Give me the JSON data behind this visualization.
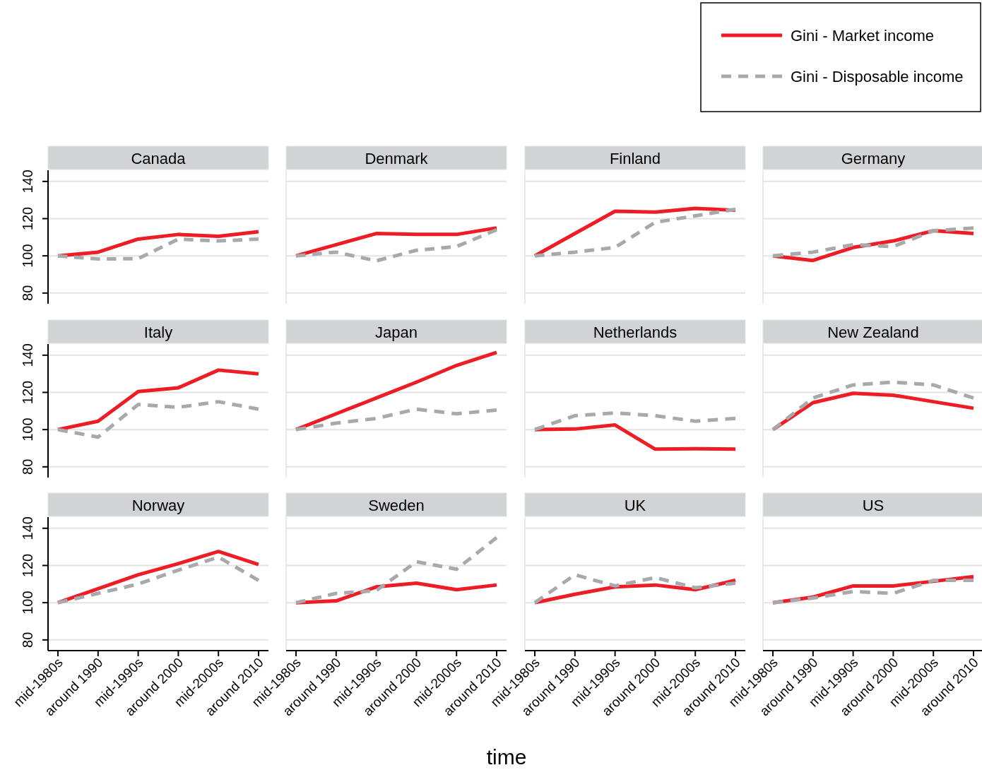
{
  "chart_data": [
    {
      "type": "line",
      "title": "Canada",
      "categories": [
        "mid-1980s",
        "around 1990",
        "mid-1990s",
        "around 2000",
        "mid-2000s",
        "around 2010"
      ],
      "ylim": [
        75,
        146
      ],
      "yticks": [
        80,
        100,
        120,
        140
      ],
      "grid": "y",
      "tick_labels": "y",
      "legend": "top right",
      "series": [
        {
          "name": "Gini - Market income",
          "color": "#ee1c25",
          "line_style": "solid",
          "values": [
            100,
            102,
            109,
            111.5,
            110.5,
            113
          ]
        },
        {
          "name": "Gini - Disposable income",
          "color": "#a7a9ac",
          "line_style": "dashed",
          "values": [
            100,
            98.3,
            98.5,
            109,
            108,
            109
          ]
        }
      ]
    },
    {
      "type": "line",
      "title": "Denmark",
      "categories": [
        "mid-1980s",
        "around 1990",
        "mid-1990s",
        "around 2000",
        "mid-2000s",
        "around 2010"
      ],
      "ylim": [
        75,
        146
      ],
      "yticks": [
        80,
        100,
        120,
        140
      ],
      "grid": "y",
      "tick_labels": false,
      "series": [
        {
          "name": "Gini - Market income",
          "color": "#ee1c25",
          "line_style": "solid",
          "values": [
            100,
            106,
            112,
            111.5,
            111.5,
            115
          ]
        },
        {
          "name": "Gini - Disposable income",
          "color": "#a7a9ac",
          "line_style": "dashed",
          "values": [
            100,
            102,
            97.3,
            103,
            105,
            114
          ]
        }
      ]
    },
    {
      "type": "line",
      "title": "Finland",
      "categories": [
        "mid-1980s",
        "around 1990",
        "mid-1990s",
        "around 2000",
        "mid-2000s",
        "around 2010"
      ],
      "ylim": [
        75,
        146
      ],
      "yticks": [
        80,
        100,
        120,
        140
      ],
      "grid": "y",
      "tick_labels": false,
      "series": [
        {
          "name": "Gini - Market income",
          "color": "#ee1c25",
          "line_style": "solid",
          "values": [
            100,
            112,
            124,
            123.5,
            125.5,
            124.5
          ]
        },
        {
          "name": "Gini - Disposable income",
          "color": "#a7a9ac",
          "line_style": "dashed",
          "values": [
            100,
            102,
            104.5,
            118,
            121.5,
            125
          ]
        }
      ]
    },
    {
      "type": "line",
      "title": "Germany",
      "categories": [
        "mid-1980s",
        "around 1990",
        "mid-1990s",
        "around 2000",
        "mid-2000s",
        "around 2010"
      ],
      "ylim": [
        75,
        146
      ],
      "yticks": [
        80,
        100,
        120,
        140
      ],
      "grid": "y",
      "tick_labels": false,
      "series": [
        {
          "name": "Gini - Market income",
          "color": "#ee1c25",
          "line_style": "solid",
          "values": [
            100,
            97.5,
            104.5,
            108,
            113.5,
            112
          ]
        },
        {
          "name": "Gini - Disposable income",
          "color": "#a7a9ac",
          "line_style": "dashed",
          "values": [
            100,
            102,
            106,
            105,
            113.5,
            115
          ]
        }
      ]
    },
    {
      "type": "line",
      "title": "Italy",
      "categories": [
        "mid-1980s",
        "around 1990",
        "mid-1990s",
        "around 2000",
        "mid-2000s",
        "around 2010"
      ],
      "ylim": [
        75,
        146
      ],
      "yticks": [
        80,
        100,
        120,
        140
      ],
      "grid": "y",
      "tick_labels": "y",
      "series": [
        {
          "name": "Gini - Market income",
          "color": "#ee1c25",
          "line_style": "solid",
          "values": [
            100,
            104.5,
            120.5,
            122.5,
            132,
            130
          ]
        },
        {
          "name": "Gini - Disposable income",
          "color": "#a7a9ac",
          "line_style": "dashed",
          "values": [
            100,
            96,
            113.5,
            112,
            115,
            111
          ]
        }
      ]
    },
    {
      "type": "line",
      "title": "Japan",
      "categories": [
        "mid-1980s",
        "around 1990",
        "mid-1990s",
        "around 2000",
        "mid-2000s",
        "around 2010"
      ],
      "ylim": [
        75,
        146
      ],
      "yticks": [
        80,
        100,
        120,
        140
      ],
      "grid": "y",
      "tick_labels": false,
      "series": [
        {
          "name": "Gini - Market income",
          "color": "#ee1c25",
          "line_style": "solid",
          "values": [
            100,
            108.5,
            117,
            125.5,
            134.5,
            141.5
          ]
        },
        {
          "name": "Gini - Disposable income",
          "color": "#a7a9ac",
          "line_style": "dashed",
          "values": [
            100,
            103.5,
            106,
            111,
            108.5,
            110.5
          ]
        }
      ]
    },
    {
      "type": "line",
      "title": "Netherlands",
      "categories": [
        "mid-1980s",
        "around 1990",
        "mid-1990s",
        "around 2000",
        "mid-2000s",
        "around 2010"
      ],
      "ylim": [
        75,
        146
      ],
      "yticks": [
        80,
        100,
        120,
        140
      ],
      "grid": "y",
      "tick_labels": false,
      "series": [
        {
          "name": "Gini - Market income",
          "color": "#ee1c25",
          "line_style": "solid",
          "values": [
            100,
            100.3,
            102.5,
            89.5,
            89.7,
            89.5
          ]
        },
        {
          "name": "Gini - Disposable income",
          "color": "#a7a9ac",
          "line_style": "dashed",
          "values": [
            100,
            107.5,
            109,
            107.5,
            104.5,
            106
          ]
        }
      ]
    },
    {
      "type": "line",
      "title": "New Zealand",
      "categories": [
        "mid-1980s",
        "around 1990",
        "mid-1990s",
        "around 2000",
        "mid-2000s",
        "around 2010"
      ],
      "ylim": [
        75,
        146
      ],
      "yticks": [
        80,
        100,
        120,
        140
      ],
      "grid": "y",
      "tick_labels": false,
      "series": [
        {
          "name": "Gini - Market income",
          "color": "#ee1c25",
          "line_style": "solid",
          "values": [
            100,
            114.5,
            119.5,
            118.5,
            115,
            111.5
          ]
        },
        {
          "name": "Gini - Disposable income",
          "color": "#a7a9ac",
          "line_style": "dashed",
          "values": [
            100,
            117,
            124,
            125.5,
            124,
            117
          ]
        }
      ]
    },
    {
      "type": "line",
      "title": "Norway",
      "categories": [
        "mid-1980s",
        "around 1990",
        "mid-1990s",
        "around 2000",
        "mid-2000s",
        "around 2010"
      ],
      "ylim": [
        75,
        146
      ],
      "yticks": [
        80,
        100,
        120,
        140
      ],
      "grid": "y",
      "series": [
        {
          "name": "Gini - Market income",
          "color": "#ee1c25",
          "line_style": "solid",
          "values": [
            100,
            107.5,
            115,
            121,
            127.5,
            120.5
          ]
        },
        {
          "name": "Gini - Disposable income",
          "color": "#a7a9ac",
          "line_style": "dashed",
          "values": [
            100,
            105,
            110,
            117.5,
            124.5,
            112
          ]
        }
      ]
    },
    {
      "type": "line",
      "title": "Sweden",
      "xlabel": "time",
      "categories": [
        "mid-1980s",
        "around 1990",
        "mid-1990s",
        "around 2000",
        "mid-2000s",
        "around 2010"
      ],
      "ylim": [
        75,
        146
      ],
      "yticks": [
        80,
        100,
        120,
        140
      ],
      "grid": "y",
      "tick_labels": "x",
      "series": [
        {
          "name": "Gini - Market income",
          "color": "#ee1c25",
          "line_style": "solid",
          "values": [
            100,
            101,
            108.5,
            110.5,
            107,
            109.5
          ]
        },
        {
          "name": "Gini - Disposable income",
          "color": "#a7a9ac",
          "line_style": "dashed",
          "values": [
            100,
            105,
            106.5,
            122,
            118,
            135
          ]
        }
      ]
    },
    {
      "type": "line",
      "title": "UK",
      "categories": [
        "mid-1980s",
        "around 1990",
        "mid-1990s",
        "around 2000",
        "mid-2000s",
        "around 2010"
      ],
      "ylim": [
        75,
        146
      ],
      "yticks": [
        80,
        100,
        120,
        140
      ],
      "grid": "y",
      "tick_labels": "x",
      "series": [
        {
          "name": "Gini - Market income",
          "color": "#ee1c25",
          "line_style": "solid",
          "values": [
            100,
            104.5,
            108.5,
            109.5,
            107,
            112
          ]
        },
        {
          "name": "Gini - Disposable income",
          "color": "#a7a9ac",
          "line_style": "dashed",
          "values": [
            100,
            115,
            109,
            113.5,
            108,
            110.5
          ]
        }
      ]
    },
    {
      "type": "line",
      "title": "US",
      "categories": [
        "mid-1980s",
        "around 1990",
        "mid-1990s",
        "around 2000",
        "mid-2000s",
        "around 2010"
      ],
      "ylim": [
        75,
        146
      ],
      "yticks": [
        80,
        100,
        120,
        140
      ],
      "grid": "y",
      "tick_labels": "x",
      "series": [
        {
          "name": "Gini - Market income",
          "color": "#ee1c25",
          "line_style": "solid",
          "values": [
            100,
            103,
            109,
            109,
            111.5,
            114
          ]
        },
        {
          "name": "Gini - Disposable income",
          "color": "#a7a9ac",
          "line_style": "dashed",
          "values": [
            100,
            102.5,
            106,
            105,
            112,
            112
          ]
        }
      ]
    }
  ]
}
